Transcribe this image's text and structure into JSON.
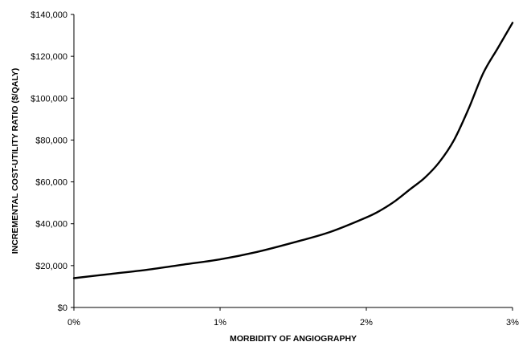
{
  "chart_data": {
    "type": "line",
    "title": "",
    "xlabel": "MORBIDITY OF ANGIOGRAPHY",
    "ylabel": "INCREMENTAL COST-UTILITY RATIO ($/QALY)",
    "xlim": [
      0,
      3
    ],
    "ylim": [
      0,
      140000
    ],
    "x_ticks": [
      0,
      1,
      2,
      3
    ],
    "x_tick_labels": [
      "0%",
      "1%",
      "2%",
      "3%"
    ],
    "y_ticks": [
      0,
      20000,
      40000,
      60000,
      80000,
      100000,
      120000,
      140000
    ],
    "y_tick_labels": [
      "$0",
      "$20,000",
      "$40,000",
      "$60,000",
      "$80,000",
      "$100,000",
      "$120,000",
      "$140,000"
    ],
    "grid": false,
    "legend": "none",
    "series": [
      {
        "color": "#000000",
        "x": [
          0.0,
          0.25,
          0.5,
          0.75,
          1.0,
          1.25,
          1.5,
          1.75,
          2.0,
          2.1,
          2.2,
          2.3,
          2.4,
          2.5,
          2.6,
          2.7,
          2.8,
          2.9,
          3.0
        ],
        "y": [
          14000,
          16000,
          18000,
          20500,
          23000,
          26500,
          31000,
          36000,
          43000,
          46500,
          51000,
          56500,
          62000,
          69500,
          80000,
          95000,
          112000,
          124000,
          136000
        ]
      }
    ]
  }
}
